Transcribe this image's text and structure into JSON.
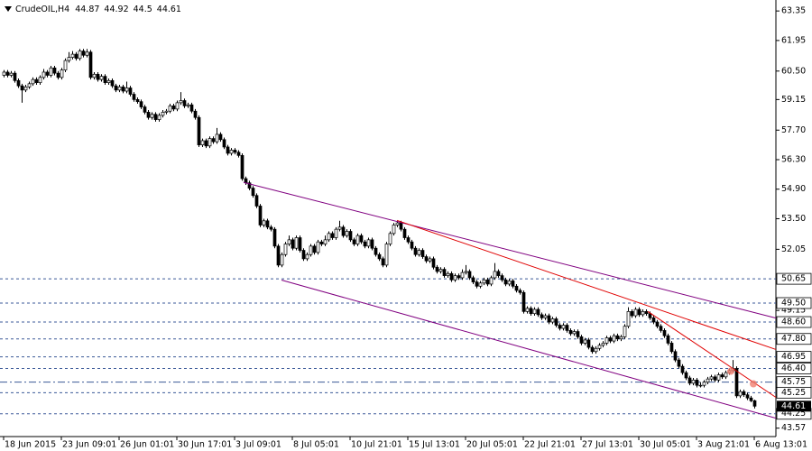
{
  "chart_data": {
    "type": "candlestick",
    "title": "CrudeOIL,H4",
    "up_color": "#ffffff",
    "down_color": "#000000",
    "xlim": [
      -1,
      214
    ],
    "ylim": [
      43.17,
      63.87
    ],
    "yticks": [
      63.35,
      61.95,
      {
        "value": 60.5,
        "label": "60.50"
      },
      59.15,
      {
        "value": 57.7,
        "label": "57.70"
      },
      {
        "value": 56.3,
        "label": "56.30"
      },
      {
        "value": 54.9,
        "label": "54.90"
      },
      {
        "value": 53.5,
        "label": "53.50"
      },
      52.05,
      49.15,
      43.57
    ],
    "levels": [
      50.65,
      {
        "value": 49.5,
        "label": "49.50"
      },
      {
        "value": 48.6,
        "label": "48.60"
      },
      {
        "value": 47.8,
        "label": "47.80"
      },
      46.95,
      {
        "value": 46.4,
        "label": "46.40"
      },
      45.75,
      45.25,
      44.25
    ],
    "level_color": "#3b5998",
    "categories": [
      "18 Jun 2015",
      null,
      null,
      null,
      null,
      null,
      null,
      null,
      null,
      null,
      null,
      null,
      null,
      null,
      null,
      null,
      "23 Jun 09:01",
      null,
      null,
      null,
      null,
      null,
      null,
      null,
      null,
      null,
      null,
      null,
      null,
      null,
      null,
      null,
      "26 Jun 01:01",
      null,
      null,
      null,
      null,
      null,
      null,
      null,
      null,
      null,
      null,
      null,
      null,
      null,
      null,
      null,
      "30 Jun 17:01",
      null,
      null,
      null,
      null,
      null,
      null,
      null,
      null,
      null,
      null,
      null,
      null,
      null,
      null,
      null,
      "3 Jul 09:01",
      null,
      null,
      null,
      null,
      null,
      null,
      null,
      null,
      null,
      null,
      null,
      null,
      null,
      null,
      null,
      "8 Jul 05:01",
      null,
      null,
      null,
      null,
      null,
      null,
      null,
      null,
      null,
      null,
      null,
      null,
      null,
      null,
      null,
      "10 Jul 21:01",
      null,
      null,
      null,
      null,
      null,
      null,
      null,
      null,
      null,
      null,
      null,
      null,
      null,
      null,
      null,
      "15 Jul 13:01",
      null,
      null,
      null,
      null,
      null,
      null,
      null,
      null,
      null,
      null,
      null,
      null,
      null,
      null,
      null,
      "20 Jul 05:01",
      null,
      null,
      null,
      null,
      null,
      null,
      null,
      null,
      null,
      null,
      null,
      null,
      null,
      null,
      null,
      "22 Jul 21:01",
      null,
      null,
      null,
      null,
      null,
      null,
      null,
      null,
      null,
      null,
      null,
      null,
      null,
      null,
      null,
      "27 Jul 13:01",
      null,
      null,
      null,
      null,
      null,
      null,
      null,
      null,
      null,
      null,
      null,
      null,
      null,
      null,
      null,
      "30 Jul 05:01",
      null,
      null,
      null,
      null,
      null,
      null,
      null,
      null,
      null,
      null,
      null,
      null,
      null,
      null,
      null,
      "3 Aug 21:01",
      null,
      null,
      null,
      null,
      null,
      null,
      null,
      null,
      null,
      null,
      null,
      null,
      null,
      null,
      null,
      "6 Aug 13:01"
    ],
    "ohlc": [
      [
        60.3,
        60.55,
        60.2,
        60.45
      ],
      [
        60.45,
        60.55,
        60.2,
        60.3
      ],
      [
        60.3,
        60.5,
        60.2,
        60.4
      ],
      [
        60.4,
        60.5,
        59.95,
        60.05
      ],
      [
        60.05,
        60.15,
        59.7,
        59.8
      ],
      [
        59.8,
        59.9,
        59.0,
        59.6
      ],
      [
        59.6,
        59.85,
        59.5,
        59.75
      ],
      [
        59.75,
        60.0,
        59.65,
        59.9
      ],
      [
        59.9,
        60.2,
        59.8,
        60.1
      ],
      [
        60.1,
        60.2,
        59.85,
        59.95
      ],
      [
        59.95,
        60.3,
        59.85,
        60.2
      ],
      [
        60.2,
        60.6,
        60.1,
        60.45
      ],
      [
        60.45,
        60.55,
        60.2,
        60.3
      ],
      [
        60.3,
        60.75,
        60.2,
        60.65
      ],
      [
        60.65,
        60.75,
        60.3,
        60.4
      ],
      [
        60.4,
        60.5,
        60.1,
        60.2
      ],
      [
        60.2,
        60.65,
        60.1,
        60.55
      ],
      [
        60.55,
        61.1,
        60.45,
        61.0
      ],
      [
        61.0,
        61.4,
        60.9,
        61.15
      ],
      [
        61.15,
        61.45,
        61.05,
        61.3
      ],
      [
        61.3,
        61.4,
        61.0,
        61.1
      ],
      [
        61.1,
        61.55,
        61.0,
        61.45
      ],
      [
        61.45,
        61.55,
        61.15,
        61.25
      ],
      [
        61.25,
        61.55,
        61.15,
        61.4
      ],
      [
        61.4,
        61.5,
        60.1,
        60.2
      ],
      [
        60.2,
        60.45,
        60.1,
        60.35
      ],
      [
        60.35,
        60.45,
        60.0,
        60.1
      ],
      [
        60.1,
        60.35,
        60.0,
        60.25
      ],
      [
        60.25,
        60.35,
        59.85,
        59.95
      ],
      [
        59.95,
        60.15,
        59.85,
        60.05
      ],
      [
        60.05,
        60.15,
        59.7,
        59.8
      ],
      [
        59.8,
        59.9,
        59.5,
        59.6
      ],
      [
        59.6,
        59.85,
        59.5,
        59.75
      ],
      [
        59.75,
        59.85,
        59.45,
        59.55
      ],
      [
        59.55,
        60.0,
        59.45,
        59.7
      ],
      [
        59.7,
        59.8,
        59.3,
        59.4
      ],
      [
        59.4,
        59.5,
        59.05,
        59.15
      ],
      [
        59.15,
        59.25,
        58.95,
        59.05
      ],
      [
        59.05,
        59.15,
        58.7,
        58.8
      ],
      [
        58.8,
        58.9,
        58.45,
        58.55
      ],
      [
        58.55,
        58.65,
        58.2,
        58.3
      ],
      [
        58.3,
        58.55,
        58.2,
        58.45
      ],
      [
        58.45,
        58.55,
        58.1,
        58.2
      ],
      [
        58.2,
        58.5,
        58.1,
        58.4
      ],
      [
        58.4,
        58.65,
        58.3,
        58.55
      ],
      [
        58.55,
        58.7,
        58.45,
        58.6
      ],
      [
        58.6,
        58.95,
        58.5,
        58.85
      ],
      [
        58.85,
        58.95,
        58.6,
        58.7
      ],
      [
        58.7,
        59.1,
        58.6,
        59.0
      ],
      [
        59.0,
        59.5,
        58.9,
        59.1
      ],
      [
        59.1,
        59.2,
        58.75,
        58.85
      ],
      [
        58.85,
        59.0,
        58.75,
        58.9
      ],
      [
        58.9,
        59.0,
        58.5,
        58.6
      ],
      [
        58.6,
        58.7,
        58.2,
        58.3
      ],
      [
        58.3,
        58.4,
        56.9,
        57.0
      ],
      [
        57.0,
        57.3,
        56.9,
        57.2
      ],
      [
        57.2,
        57.3,
        56.85,
        56.95
      ],
      [
        56.95,
        57.4,
        56.85,
        57.3
      ],
      [
        57.3,
        57.4,
        57.05,
        57.15
      ],
      [
        57.15,
        57.8,
        57.05,
        57.5
      ],
      [
        57.5,
        57.6,
        57.15,
        57.25
      ],
      [
        57.25,
        57.35,
        56.8,
        56.9
      ],
      [
        56.9,
        57.0,
        56.5,
        56.6
      ],
      [
        56.6,
        56.85,
        56.5,
        56.75
      ],
      [
        56.75,
        56.85,
        56.55,
        56.65
      ],
      [
        56.65,
        56.75,
        56.4,
        56.5
      ],
      [
        56.5,
        56.6,
        55.3,
        55.4
      ],
      [
        55.4,
        55.5,
        55.1,
        55.2
      ],
      [
        55.2,
        55.3,
        54.85,
        54.95
      ],
      [
        54.95,
        55.05,
        54.5,
        54.6
      ],
      [
        54.6,
        54.7,
        54.0,
        54.1
      ],
      [
        54.1,
        54.2,
        53.1,
        53.2
      ],
      [
        53.2,
        53.5,
        53.1,
        53.4
      ],
      [
        53.4,
        53.5,
        53.0,
        53.1
      ],
      [
        53.1,
        53.2,
        52.9,
        53.0
      ],
      [
        53.0,
        53.1,
        52.1,
        52.2
      ],
      [
        52.2,
        52.3,
        51.2,
        51.3
      ],
      [
        51.3,
        51.9,
        51.2,
        51.8
      ],
      [
        51.8,
        52.4,
        51.7,
        52.3
      ],
      [
        52.3,
        52.7,
        52.2,
        52.5
      ],
      [
        52.5,
        52.6,
        52.0,
        52.1
      ],
      [
        52.1,
        52.7,
        52.0,
        52.6
      ],
      [
        52.6,
        52.7,
        51.9,
        52.0
      ],
      [
        52.0,
        52.1,
        51.5,
        51.6
      ],
      [
        51.6,
        51.9,
        51.5,
        51.8
      ],
      [
        51.8,
        52.3,
        51.7,
        52.2
      ],
      [
        52.2,
        52.3,
        51.8,
        51.9
      ],
      [
        51.9,
        52.5,
        51.8,
        52.4
      ],
      [
        52.4,
        52.5,
        52.2,
        52.3
      ],
      [
        52.3,
        52.7,
        52.2,
        52.5
      ],
      [
        52.5,
        52.9,
        52.4,
        52.8
      ],
      [
        52.8,
        52.9,
        52.5,
        52.6
      ],
      [
        52.6,
        53.1,
        52.5,
        53.0
      ],
      [
        53.0,
        53.4,
        52.9,
        53.1
      ],
      [
        53.1,
        53.2,
        52.6,
        52.7
      ],
      [
        52.7,
        53.0,
        52.6,
        52.9
      ],
      [
        52.9,
        53.0,
        52.4,
        52.5
      ],
      [
        52.5,
        52.6,
        52.2,
        52.3
      ],
      [
        52.3,
        52.8,
        52.2,
        52.7
      ],
      [
        52.7,
        52.8,
        52.3,
        52.4
      ],
      [
        52.4,
        52.5,
        52.1,
        52.2
      ],
      [
        52.2,
        52.6,
        52.1,
        52.5
      ],
      [
        52.5,
        52.6,
        52.0,
        52.1
      ],
      [
        52.1,
        52.2,
        51.7,
        51.8
      ],
      [
        51.8,
        51.9,
        51.5,
        51.6
      ],
      [
        51.6,
        51.7,
        51.2,
        51.3
      ],
      [
        51.3,
        52.4,
        51.2,
        52.3
      ],
      [
        52.3,
        52.9,
        52.2,
        52.8
      ],
      [
        52.8,
        53.3,
        52.7,
        53.2
      ],
      [
        53.2,
        53.4,
        53.1,
        53.3
      ],
      [
        53.3,
        53.4,
        52.9,
        53.0
      ],
      [
        53.0,
        53.1,
        52.5,
        52.6
      ],
      [
        52.6,
        52.7,
        52.3,
        52.4
      ],
      [
        52.4,
        52.5,
        52.0,
        52.1
      ],
      [
        52.1,
        52.2,
        51.7,
        51.8
      ],
      [
        51.8,
        52.1,
        51.7,
        52.0
      ],
      [
        52.0,
        52.1,
        51.6,
        51.7
      ],
      [
        51.7,
        51.8,
        51.4,
        51.5
      ],
      [
        51.5,
        51.7,
        51.4,
        51.6
      ],
      [
        51.6,
        51.7,
        51.1,
        51.2
      ],
      [
        51.2,
        51.3,
        50.9,
        51.0
      ],
      [
        51.0,
        51.2,
        50.9,
        51.1
      ],
      [
        51.1,
        51.2,
        50.7,
        50.8
      ],
      [
        50.8,
        51.0,
        50.7,
        50.9
      ],
      [
        50.9,
        51.0,
        50.5,
        50.6
      ],
      [
        50.6,
        50.9,
        50.5,
        50.8
      ],
      [
        50.8,
        50.9,
        50.6,
        50.7
      ],
      [
        50.7,
        51.1,
        50.6,
        50.95
      ],
      [
        50.95,
        51.3,
        50.85,
        51.0
      ],
      [
        51.0,
        51.1,
        50.6,
        50.7
      ],
      [
        50.7,
        50.8,
        50.4,
        50.5
      ],
      [
        50.5,
        50.6,
        50.2,
        50.3
      ],
      [
        50.3,
        50.55,
        50.2,
        50.45
      ],
      [
        50.45,
        50.7,
        50.35,
        50.6
      ],
      [
        50.6,
        50.7,
        50.3,
        50.4
      ],
      [
        50.4,
        50.8,
        50.3,
        50.7
      ],
      [
        50.7,
        51.4,
        50.6,
        51.0
      ],
      [
        51.0,
        51.1,
        50.7,
        50.8
      ],
      [
        50.8,
        50.9,
        50.5,
        50.6
      ],
      [
        50.6,
        50.7,
        50.3,
        50.4
      ],
      [
        50.4,
        50.65,
        50.3,
        50.55
      ],
      [
        50.55,
        50.65,
        50.2,
        50.3
      ],
      [
        50.3,
        50.4,
        50.0,
        50.1
      ],
      [
        50.1,
        50.2,
        49.9,
        50.0
      ],
      [
        50.0,
        50.1,
        49.0,
        49.1
      ],
      [
        49.1,
        49.35,
        49.0,
        49.25
      ],
      [
        49.25,
        49.35,
        48.9,
        49.0
      ],
      [
        49.0,
        49.3,
        48.9,
        49.2
      ],
      [
        49.2,
        49.3,
        48.85,
        48.95
      ],
      [
        48.95,
        49.05,
        48.7,
        48.8
      ],
      [
        48.8,
        49.0,
        48.7,
        48.9
      ],
      [
        48.9,
        49.0,
        48.5,
        48.6
      ],
      [
        48.6,
        48.85,
        48.5,
        48.75
      ],
      [
        48.75,
        48.85,
        48.35,
        48.45
      ],
      [
        48.45,
        48.55,
        48.2,
        48.3
      ],
      [
        48.3,
        48.55,
        48.2,
        48.45
      ],
      [
        48.45,
        48.55,
        48.1,
        48.2
      ],
      [
        48.2,
        48.3,
        47.95,
        48.05
      ],
      [
        48.05,
        48.25,
        47.95,
        48.15
      ],
      [
        48.15,
        48.25,
        47.8,
        47.9
      ],
      [
        47.9,
        48.0,
        47.5,
        47.6
      ],
      [
        47.6,
        47.85,
        47.5,
        47.75
      ],
      [
        47.75,
        47.85,
        47.3,
        47.4
      ],
      [
        47.4,
        47.5,
        47.1,
        47.2
      ],
      [
        47.2,
        47.45,
        47.1,
        47.35
      ],
      [
        47.35,
        47.6,
        47.25,
        47.5
      ],
      [
        47.5,
        47.7,
        47.4,
        47.6
      ],
      [
        47.6,
        47.95,
        47.5,
        47.85
      ],
      [
        47.85,
        47.95,
        47.6,
        47.7
      ],
      [
        47.7,
        48.05,
        47.6,
        47.95
      ],
      [
        47.95,
        48.05,
        47.7,
        47.8
      ],
      [
        47.8,
        48.0,
        47.7,
        47.9
      ],
      [
        47.9,
        48.5,
        47.8,
        48.4
      ],
      [
        48.4,
        49.3,
        48.3,
        49.1
      ],
      [
        49.1,
        49.2,
        48.8,
        48.9
      ],
      [
        48.9,
        49.3,
        48.8,
        49.2
      ],
      [
        49.2,
        49.3,
        48.85,
        48.95
      ],
      [
        48.95,
        49.2,
        48.85,
        49.1
      ],
      [
        49.1,
        49.2,
        48.9,
        49.0
      ],
      [
        49.0,
        49.1,
        48.7,
        48.8
      ],
      [
        48.8,
        48.9,
        48.5,
        48.6
      ],
      [
        48.6,
        48.7,
        48.3,
        48.4
      ],
      [
        48.4,
        48.5,
        48.1,
        48.2
      ],
      [
        48.2,
        48.3,
        47.85,
        47.95
      ],
      [
        47.95,
        48.05,
        47.5,
        47.6
      ],
      [
        47.6,
        47.7,
        47.1,
        47.2
      ],
      [
        47.2,
        47.3,
        46.7,
        46.8
      ],
      [
        46.8,
        46.9,
        46.4,
        46.5
      ],
      [
        46.5,
        46.6,
        46.1,
        46.2
      ],
      [
        46.2,
        46.3,
        45.85,
        45.95
      ],
      [
        45.95,
        46.05,
        45.6,
        45.7
      ],
      [
        45.7,
        45.95,
        45.6,
        45.85
      ],
      [
        45.85,
        45.95,
        45.5,
        45.6
      ],
      [
        45.6,
        45.75,
        45.5,
        45.6
      ],
      [
        45.6,
        45.85,
        45.5,
        45.75
      ],
      [
        45.75,
        46.0,
        45.65,
        45.9
      ],
      [
        45.9,
        46.1,
        45.8,
        46.0
      ],
      [
        46.0,
        46.1,
        45.75,
        45.85
      ],
      [
        45.85,
        46.2,
        45.75,
        46.1
      ],
      [
        46.1,
        46.2,
        45.9,
        46.0
      ],
      [
        46.0,
        46.3,
        45.9,
        46.2
      ],
      [
        46.2,
        46.4,
        46.1,
        46.3
      ],
      [
        46.3,
        46.8,
        46.2,
        46.4
      ],
      [
        46.4,
        46.5,
        45.0,
        45.1
      ],
      [
        45.1,
        45.4,
        45.0,
        45.3
      ],
      [
        45.3,
        45.4,
        45.05,
        45.15
      ],
      [
        45.15,
        45.25,
        44.9,
        45.0
      ],
      [
        45.0,
        45.1,
        44.8,
        44.87
      ],
      [
        44.87,
        44.92,
        44.5,
        44.61
      ]
    ],
    "trendlines": [
      {
        "color": "#800080",
        "from": [
          66.5,
          55.22
        ],
        "to": [
          214,
          48.79
        ]
      },
      {
        "color": "#800080",
        "from": [
          77,
          50.59
        ],
        "to": [
          214,
          44.04
        ]
      },
      {
        "color": "#e00000",
        "from": [
          109,
          53.42
        ],
        "to": [
          214,
          47.3
        ]
      },
      {
        "color": "#e00000",
        "from": [
          178.5,
          49.1
        ],
        "to": [
          214,
          45.03
        ]
      }
    ],
    "markers": [
      {
        "color": "#f08070",
        "at": [
          201.5,
          46.27
        ]
      },
      {
        "color": "#f08070",
        "at": [
          207.75,
          45.67
        ]
      }
    ]
  }
}
